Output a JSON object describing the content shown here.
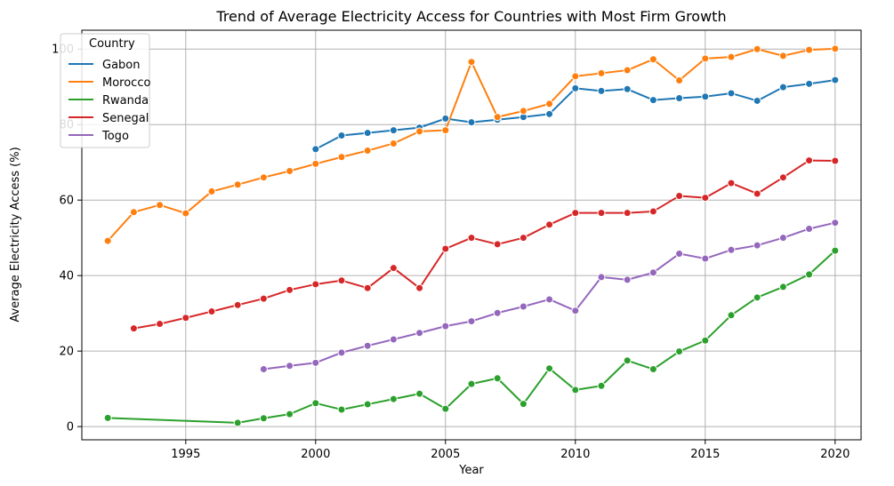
{
  "chart_data": {
    "type": "line",
    "title": "Trend of Average Electricity Access for Countries with Most Firm Growth",
    "xlabel": "Year",
    "ylabel": "Average Electricity Access (%)",
    "xlim": [
      1991,
      2021
    ],
    "ylim": [
      -3.5,
      105
    ],
    "xticks": [
      1995,
      2000,
      2005,
      2010,
      2015,
      2020
    ],
    "yticks": [
      0,
      20,
      40,
      60,
      80,
      100
    ],
    "grid": true,
    "legend": {
      "title": "Country",
      "placement": "top-left"
    },
    "series": [
      {
        "name": "Gabon",
        "color": "#1f77b4",
        "x": [
          2000,
          2001,
          2002,
          2003,
          2004,
          2005,
          2006,
          2007,
          2008,
          2009,
          2010,
          2011,
          2012,
          2013,
          2014,
          2015,
          2016,
          2017,
          2018,
          2019,
          2020
        ],
        "y": [
          73.5,
          77.1,
          77.8,
          78.5,
          79.2,
          81.6,
          80.6,
          81.3,
          82.0,
          82.8,
          89.6,
          88.9,
          89.4,
          86.5,
          87.0,
          87.4,
          88.3,
          86.3,
          89.9,
          90.8,
          91.8
        ]
      },
      {
        "name": "Morocco",
        "color": "#ff7f0e",
        "x": [
          1992,
          1993,
          1994,
          1995,
          1996,
          1997,
          1998,
          1999,
          2000,
          2001,
          2002,
          2003,
          2004,
          2005,
          2006,
          2007,
          2008,
          2009,
          2010,
          2011,
          2012,
          2013,
          2014,
          2015,
          2016,
          2017,
          2018,
          2019,
          2020
        ],
        "y": [
          49.2,
          56.8,
          58.7,
          56.5,
          62.3,
          64.1,
          66.0,
          67.7,
          69.6,
          71.4,
          73.1,
          75.0,
          78.2,
          78.5,
          96.6,
          82.0,
          83.6,
          85.5,
          92.8,
          93.6,
          94.4,
          97.3,
          91.7,
          97.5,
          97.9,
          100.0,
          98.2,
          99.8,
          100.1
        ]
      },
      {
        "name": "Rwanda",
        "color": "#2ca02c",
        "x": [
          1992,
          1997,
          1998,
          1999,
          2000,
          2001,
          2002,
          2003,
          2004,
          2005,
          2006,
          2007,
          2008,
          2009,
          2010,
          2011,
          2012,
          2013,
          2014,
          2015,
          2016,
          2017,
          2018,
          2019,
          2020
        ],
        "y": [
          2.3,
          1.0,
          2.2,
          3.3,
          6.2,
          4.5,
          5.9,
          7.3,
          8.7,
          4.7,
          11.3,
          12.8,
          6.0,
          15.4,
          9.7,
          10.8,
          17.5,
          15.2,
          19.9,
          22.8,
          29.5,
          34.2,
          37.0,
          40.3,
          46.6
        ]
      },
      {
        "name": "Senegal",
        "color": "#d62728",
        "x": [
          1993,
          1994,
          1995,
          1996,
          1997,
          1998,
          1999,
          2000,
          2001,
          2002,
          2003,
          2004,
          2005,
          2006,
          2007,
          2008,
          2009,
          2010,
          2011,
          2012,
          2013,
          2014,
          2015,
          2016,
          2017,
          2018,
          2019,
          2020
        ],
        "y": [
          26.0,
          27.2,
          28.8,
          30.5,
          32.2,
          33.9,
          36.2,
          37.7,
          38.7,
          36.7,
          42.0,
          36.7,
          47.1,
          50.0,
          48.3,
          50.0,
          53.5,
          56.6,
          56.6,
          56.6,
          57.0,
          61.1,
          60.6,
          64.5,
          61.7,
          66.0,
          70.5,
          70.4
        ]
      },
      {
        "name": "Togo",
        "color": "#9467bd",
        "x": [
          1998,
          1999,
          2000,
          2001,
          2002,
          2003,
          2004,
          2005,
          2006,
          2007,
          2008,
          2009,
          2010,
          2011,
          2012,
          2013,
          2014,
          2015,
          2016,
          2017,
          2018,
          2019,
          2020
        ],
        "y": [
          15.2,
          16.1,
          16.9,
          19.6,
          21.4,
          23.1,
          24.8,
          26.6,
          27.9,
          30.1,
          31.8,
          33.7,
          30.7,
          39.6,
          38.9,
          40.8,
          45.8,
          44.5,
          46.8,
          48.0,
          50.0,
          52.4,
          54.0
        ]
      }
    ]
  }
}
